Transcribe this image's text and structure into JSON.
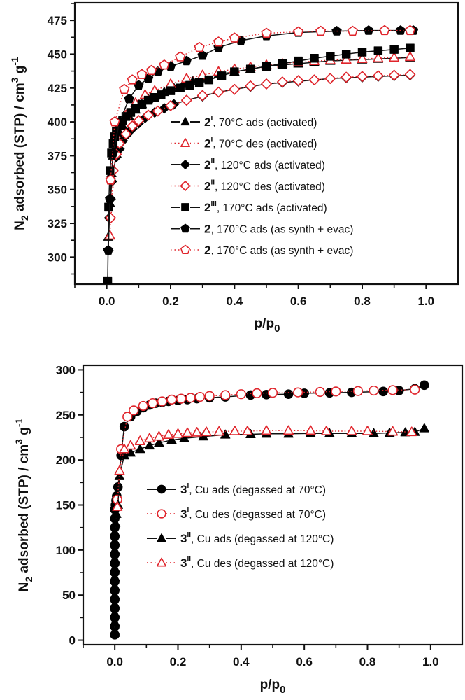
{
  "chart_data": [
    {
      "type": "scatter",
      "title": "",
      "xlabel": "p/p0",
      "ylabel": "N2 adsorbed (STP) / cm3 g-1",
      "xlim": [
        -0.1,
        1.1
      ],
      "ylim": [
        280,
        488
      ],
      "xticks": [
        "0.0",
        "0.2",
        "0.4",
        "0.6",
        "0.8",
        "1.0"
      ],
      "xtick_values": [
        0.0,
        0.2,
        0.4,
        0.6,
        0.8,
        1.0
      ],
      "yticks": [
        "300",
        "325",
        "350",
        "375",
        "400",
        "425",
        "450",
        "475"
      ],
      "ytick_values": [
        300,
        325,
        350,
        375,
        400,
        425,
        450,
        475
      ],
      "grid": false,
      "legend_position": "right-middle",
      "series": [
        {
          "name": "2I, 70°C ads (activated)",
          "label_bold": "2",
          "label_sup": "I",
          "label_rest": ", 70°C ads  (activated)",
          "marker": "triangle",
          "filled": true,
          "color": "#000000",
          "line": "solid",
          "x": [
            0.005,
            0.01,
            0.015,
            0.02,
            0.03,
            0.04,
            0.05,
            0.07,
            0.09,
            0.11,
            0.13,
            0.15,
            0.18,
            0.21,
            0.24,
            0.27,
            0.3,
            0.35,
            0.4,
            0.45,
            0.5,
            0.55,
            0.6,
            0.65,
            0.7,
            0.75,
            0.8,
            0.85,
            0.9,
            0.95
          ],
          "y": [
            315,
            340,
            362,
            375,
            385,
            392,
            397,
            404,
            409,
            413,
            417,
            419,
            422,
            425,
            428,
            430,
            432,
            435,
            437,
            439,
            441,
            442,
            443,
            444,
            445,
            445.5,
            446,
            446.5,
            447,
            447.5
          ]
        },
        {
          "name": "2I, 70°C des (activated)",
          "label_bold": "2",
          "label_sup": "I",
          "label_rest": ", 70°C des (activated)",
          "marker": "triangle",
          "filled": false,
          "color": "#e0242b",
          "line": "dotted",
          "x": [
            0.95,
            0.9,
            0.85,
            0.8,
            0.75,
            0.7,
            0.65,
            0.6,
            0.55,
            0.5,
            0.45,
            0.4,
            0.35,
            0.3,
            0.25,
            0.2,
            0.15,
            0.12,
            0.09,
            0.06,
            0.03,
            0.01
          ],
          "y": [
            448,
            447.5,
            447,
            446.5,
            446,
            445.5,
            445,
            444,
            443,
            442,
            440.5,
            439,
            437,
            434.5,
            432,
            428,
            423,
            420,
            414,
            405,
            390,
            316
          ]
        },
        {
          "name": "2II, 120°C ads (activated)",
          "label_bold": "2",
          "label_sup": "II",
          "label_rest": ", 120°C ads (activated)",
          "marker": "diamond",
          "filled": true,
          "color": "#000000",
          "line": "solid",
          "x": [
            0.005,
            0.008,
            0.012,
            0.016,
            0.02,
            0.03,
            0.04,
            0.05,
            0.065,
            0.08,
            0.1,
            0.12,
            0.15,
            0.18,
            0.21,
            0.25,
            0.3,
            0.35,
            0.4,
            0.45,
            0.5,
            0.55,
            0.6,
            0.65,
            0.7,
            0.75,
            0.8,
            0.85,
            0.9,
            0.95
          ],
          "y": [
            305,
            329,
            343,
            356,
            364,
            374,
            380,
            386,
            391,
            395,
            399,
            403,
            407,
            410,
            413,
            416,
            419,
            422,
            424,
            426,
            428,
            429,
            430,
            431,
            432,
            432.5,
            433,
            433.5,
            434,
            434.5
          ]
        },
        {
          "name": "2II, 120°C des (activated)",
          "label_bold": "2",
          "label_sup": "II",
          "label_rest": ", 120°C des (activated)",
          "marker": "diamond",
          "filled": false,
          "color": "#e0242b",
          "line": "dotted",
          "x": [
            0.95,
            0.9,
            0.85,
            0.8,
            0.75,
            0.7,
            0.65,
            0.6,
            0.55,
            0.5,
            0.45,
            0.4,
            0.35,
            0.3,
            0.25,
            0.2,
            0.16,
            0.13,
            0.1,
            0.08,
            0.06,
            0.04,
            0.03,
            0.02,
            0.012
          ],
          "y": [
            435,
            434.5,
            434,
            433.5,
            433,
            432,
            431,
            430.5,
            429.5,
            428,
            426.5,
            424,
            422,
            419.5,
            416,
            412,
            408,
            405,
            401,
            397,
            391,
            384,
            376,
            364,
            329
          ]
        },
        {
          "name": "2III, 170°C ads (activated)",
          "label_bold": "2",
          "label_sup": "III",
          "label_rest": ", 170°C ads (activated)",
          "marker": "square",
          "filled": true,
          "color": "#000000",
          "line": "solid",
          "x": [
            0.003,
            0.006,
            0.01,
            0.015,
            0.02,
            0.025,
            0.03,
            0.04,
            0.05,
            0.06,
            0.075,
            0.09,
            0.11,
            0.13,
            0.15,
            0.17,
            0.2,
            0.23,
            0.26,
            0.29,
            0.32,
            0.36,
            0.4,
            0.45,
            0.5,
            0.55,
            0.6,
            0.65,
            0.7,
            0.75,
            0.8,
            0.85,
            0.9,
            0.95
          ],
          "y": [
            282,
            337,
            364,
            377,
            384,
            389,
            393,
            398,
            401,
            404,
            407,
            410,
            413,
            416,
            418,
            420,
            423,
            425,
            427,
            429,
            431,
            434,
            437,
            439,
            441,
            443,
            445,
            447,
            448.5,
            450,
            451.5,
            452.5,
            453.5,
            454.5
          ]
        },
        {
          "name": "2, 170°C ads (as synth + evac)",
          "label_bold": "2",
          "label_sup": "",
          "label_rest": ", 170°C ads (as synth + evac)",
          "marker": "pentagon",
          "filled": true,
          "color": "#000000",
          "line": "solid",
          "x": [
            0.005,
            0.01,
            0.02,
            0.04,
            0.07,
            0.1,
            0.13,
            0.16,
            0.2,
            0.25,
            0.3,
            0.35,
            0.42,
            0.5,
            0.6,
            0.72,
            0.82,
            0.92,
            0.96
          ],
          "y": [
            305,
            343,
            377,
            400,
            417,
            427,
            432,
            437,
            441,
            445,
            449,
            455,
            460,
            463.5,
            466,
            467,
            467.5,
            467.5,
            467.5
          ]
        },
        {
          "name": "2, 170°C ads (as synth + evac)",
          "label_bold": "2",
          "label_sup": "",
          "label_rest": ", 170°C ads (as synth + evac)",
          "marker": "pentagon",
          "filled": false,
          "color": "#e0242b",
          "line": "dotted",
          "x": [
            0.95,
            0.87,
            0.77,
            0.67,
            0.6,
            0.5,
            0.4,
            0.35,
            0.29,
            0.23,
            0.18,
            0.14,
            0.11,
            0.08,
            0.055,
            0.025,
            0.012
          ],
          "y": [
            467.5,
            467.5,
            467,
            467,
            466.5,
            465.5,
            462,
            459,
            455,
            448,
            442,
            438,
            435,
            431,
            424,
            400,
            357
          ]
        }
      ]
    },
    {
      "type": "scatter",
      "title": "",
      "xlabel": "p/p0",
      "ylabel": "N2 adsorbed (STP) / cm3 g-1",
      "xlim": [
        -0.1,
        1.1
      ],
      "ylim": [
        -5,
        305
      ],
      "xticks": [
        "0.0",
        "0.2",
        "0.4",
        "0.6",
        "0.8",
        "1.0"
      ],
      "xtick_values": [
        0.0,
        0.2,
        0.4,
        0.6,
        0.8,
        1.0
      ],
      "yticks": [
        "0",
        "50",
        "100",
        "150",
        "200",
        "250",
        "300"
      ],
      "ytick_values": [
        0,
        50,
        100,
        150,
        200,
        250,
        300
      ],
      "grid": false,
      "legend_position": "right-middle",
      "series": [
        {
          "name": "3I, Cu ads (degassed at 70°C)",
          "label_bold": "3",
          "label_sup": "I",
          "label_rest": ",  Cu ads (degassed at 70°C)",
          "marker": "circle",
          "filled": true,
          "color": "#000000",
          "line": "solid",
          "x": [
            0.0,
            0.0,
            0.0,
            0.0,
            0.0,
            0.0,
            0.0,
            0.0,
            0.0,
            0.0,
            0.0,
            0.0,
            0.0,
            0.0,
            0.0,
            0.002,
            0.004,
            0.006,
            0.01,
            0.02,
            0.03,
            0.05,
            0.07,
            0.09,
            0.11,
            0.13,
            0.15,
            0.17,
            0.2,
            0.23,
            0.26,
            0.3,
            0.35,
            0.43,
            0.48,
            0.55,
            0.6,
            0.68,
            0.75,
            0.85,
            0.9,
            0.95,
            0.98
          ],
          "y": [
            6,
            15,
            25,
            35,
            45,
            55,
            65,
            75,
            85,
            95,
            105,
            115,
            125,
            135,
            145,
            150,
            155,
            160,
            170,
            205,
            237,
            248,
            254,
            258,
            261,
            263,
            264,
            265,
            266,
            267,
            268,
            269,
            270,
            272,
            272.5,
            273,
            274,
            274.5,
            275,
            276,
            277,
            279,
            283
          ]
        },
        {
          "name": "3I, Cu des (degassed at 70°C)",
          "label_bold": "3",
          "label_sup": "I",
          "label_rest": ",  Cu des (degassed at 70°C)",
          "marker": "circle",
          "filled": false,
          "color": "#e0242b",
          "line": "dotted",
          "x": [
            0.95,
            0.88,
            0.82,
            0.77,
            0.7,
            0.65,
            0.58,
            0.5,
            0.45,
            0.4,
            0.35,
            0.3,
            0.27,
            0.24,
            0.21,
            0.18,
            0.15,
            0.12,
            0.09,
            0.06,
            0.04,
            0.02,
            0.008
          ],
          "y": [
            278,
            277.5,
            277,
            276.5,
            276,
            275.5,
            275,
            274.5,
            274,
            273,
            272,
            271,
            270,
            269,
            268,
            267,
            265,
            263,
            260,
            255,
            248,
            212,
            156
          ]
        },
        {
          "name": "3II, Cu ads (degassed at 120°C)",
          "label_bold": "3",
          "label_sup": "II",
          "label_rest": ",  Cu ads (degassed at 120°C)",
          "marker": "triangle",
          "filled": true,
          "color": "#000000",
          "line": "solid",
          "x": [
            0.0,
            0.0,
            0.0,
            0.0,
            0.0,
            0.0,
            0.0,
            0.0,
            0.0,
            0.0,
            0.0,
            0.0,
            0.002,
            0.005,
            0.01,
            0.015,
            0.03,
            0.05,
            0.08,
            0.11,
            0.14,
            0.18,
            0.22,
            0.28,
            0.35,
            0.43,
            0.48,
            0.55,
            0.62,
            0.68,
            0.75,
            0.82,
            0.87,
            0.92,
            0.95,
            0.98
          ],
          "y": [
            8,
            20,
            30,
            40,
            50,
            60,
            70,
            80,
            90,
            100,
            110,
            120,
            130,
            140,
            150,
            182,
            205,
            208,
            212,
            216,
            219,
            222,
            224,
            226,
            228,
            228.5,
            229,
            229,
            229.5,
            229.5,
            229.5,
            229.5,
            230,
            230.5,
            231,
            235
          ]
        },
        {
          "name": "3II, Cu des (degassed at 120°C)",
          "label_bold": "3",
          "label_sup": "II",
          "label_rest": ",  Cu des (degassed at 120°C)",
          "marker": "triangle",
          "filled": false,
          "color": "#e0242b",
          "line": "dotted",
          "x": [
            0.94,
            0.88,
            0.8,
            0.75,
            0.67,
            0.62,
            0.55,
            0.48,
            0.42,
            0.38,
            0.33,
            0.29,
            0.26,
            0.23,
            0.2,
            0.17,
            0.14,
            0.11,
            0.08,
            0.05,
            0.03,
            0.015,
            0.008
          ],
          "y": [
            231,
            231.5,
            232,
            232,
            232,
            232.5,
            232.5,
            232.5,
            232,
            232,
            231.5,
            231,
            230.5,
            230,
            229,
            228,
            226,
            224,
            221,
            216,
            212,
            188,
            148
          ]
        }
      ]
    }
  ]
}
